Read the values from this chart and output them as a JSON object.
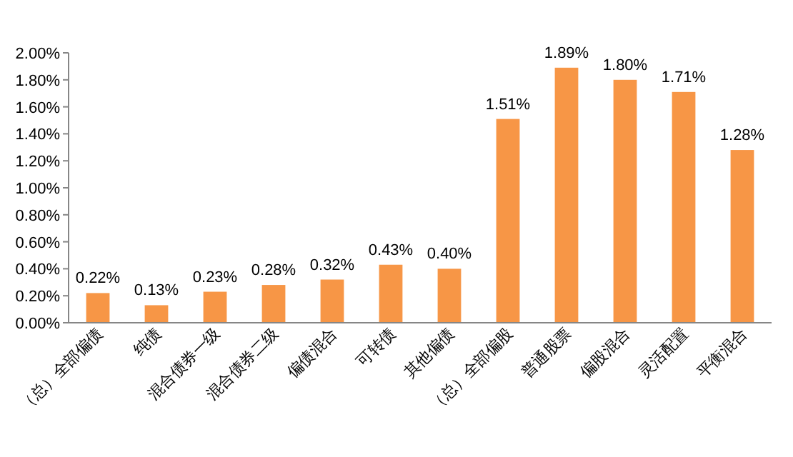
{
  "chart_data": {
    "type": "bar",
    "categories": [
      "（总）全部偏债",
      "纯债",
      "混合债券一级",
      "混合债券二级",
      "偏债混合",
      "可转债",
      "其他偏债",
      "（总）全部偏股",
      "普通股票",
      "偏股混合",
      "灵活配置",
      "平衡混合"
    ],
    "values": [
      0.22,
      0.13,
      0.23,
      0.28,
      0.32,
      0.43,
      0.4,
      1.51,
      1.89,
      1.8,
      1.71,
      1.28
    ],
    "value_labels": [
      "0.22%",
      "0.13%",
      "0.23%",
      "0.28%",
      "0.32%",
      "0.43%",
      "0.40%",
      "1.51%",
      "1.89%",
      "1.80%",
      "1.71%",
      "1.28%"
    ],
    "color": "#f79646",
    "ylim": [
      0,
      2
    ],
    "yticks": [
      {
        "value": 0,
        "label": "0.00%"
      },
      {
        "value": 0.2,
        "label": "0.20%"
      },
      {
        "value": 0.4,
        "label": "0.40%"
      },
      {
        "value": 0.6,
        "label": "0.60%"
      },
      {
        "value": 0.8,
        "label": "0.80%"
      },
      {
        "value": 1.0,
        "label": "1.00%"
      },
      {
        "value": 1.2,
        "label": "1.20%"
      },
      {
        "value": 1.4,
        "label": "1.40%"
      },
      {
        "value": 1.6,
        "label": "1.60%"
      },
      {
        "value": 1.8,
        "label": "1.80%"
      },
      {
        "value": 2.0,
        "label": "2.00%"
      }
    ],
    "grid": false
  }
}
